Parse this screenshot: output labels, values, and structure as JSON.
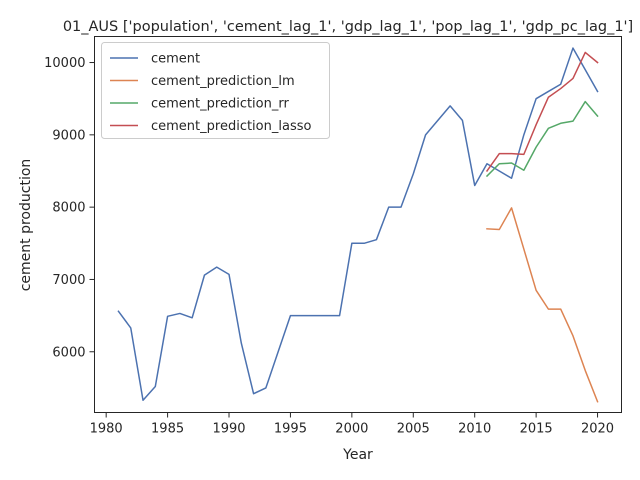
{
  "chart_data": {
    "type": "line",
    "title": "01_AUS ['population', 'cement_lag_1', 'gdp_lag_1', 'pop_lag_1', 'gdp_pc_lag_1']",
    "xlabel": "Year",
    "ylabel": "cement production",
    "xlim": [
      1979.05,
      2021.95
    ],
    "ylim": [
      5160,
      10360
    ],
    "xticks": [
      1980,
      1985,
      1990,
      1995,
      2000,
      2005,
      2010,
      2015,
      2020
    ],
    "yticks": [
      6000,
      7000,
      8000,
      9000,
      10000
    ],
    "grid": false,
    "legend_position": "top-left",
    "series": [
      {
        "name": "cement",
        "color": "#4c72b0",
        "x": [
          1981,
          1982,
          1983,
          1984,
          1985,
          1986,
          1987,
          1988,
          1989,
          1990,
          1991,
          1992,
          1993,
          1994,
          1995,
          1996,
          1997,
          1998,
          1999,
          2000,
          2001,
          2002,
          2003,
          2004,
          2005,
          2006,
          2007,
          2008,
          2009,
          2010,
          2011,
          2012,
          2013,
          2014,
          2015,
          2016,
          2017,
          2018,
          2019,
          2020
        ],
        "y": [
          6560,
          6330,
          5330,
          5520,
          6490,
          6530,
          6470,
          7060,
          7170,
          7070,
          6120,
          5420,
          5500,
          6000,
          6500,
          6500,
          6500,
          6500,
          6500,
          7500,
          7500,
          7550,
          8000,
          8000,
          8460,
          9000,
          9200,
          9400,
          9200,
          8300,
          8600,
          8500,
          8400,
          9000,
          9500,
          9600,
          9700,
          10200,
          9900,
          9600
        ]
      },
      {
        "name": "cement_prediction_lm",
        "color": "#dd8452",
        "x": [
          2011,
          2012,
          2013,
          2014,
          2015,
          2016,
          2017,
          2018,
          2019,
          2020
        ],
        "y": [
          7700,
          7690,
          7990,
          7420,
          6850,
          6590,
          6590,
          6220,
          5740,
          5310
        ]
      },
      {
        "name": "cement_prediction_rr",
        "color": "#55a868",
        "x": [
          2011,
          2012,
          2013,
          2014,
          2015,
          2016,
          2017,
          2018,
          2019,
          2020
        ],
        "y": [
          8430,
          8600,
          8610,
          8510,
          8830,
          9090,
          9160,
          9190,
          9460,
          9260
        ]
      },
      {
        "name": "cement_prediction_lasso",
        "color": "#c44e52",
        "x": [
          2011,
          2012,
          2013,
          2014,
          2015,
          2016,
          2017,
          2018,
          2019,
          2020
        ],
        "y": [
          8500,
          8740,
          8740,
          8730,
          9140,
          9520,
          9640,
          9780,
          10140,
          10000
        ]
      }
    ]
  }
}
